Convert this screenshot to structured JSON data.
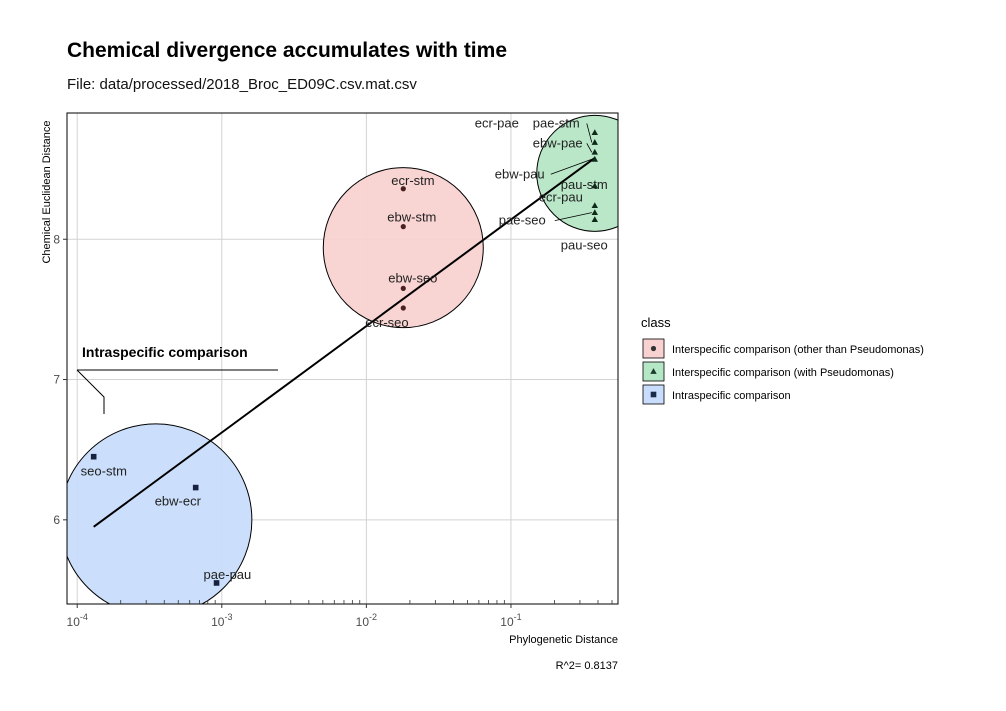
{
  "chart_data": {
    "type": "scatter",
    "title": "Chemical divergence accumulates with time",
    "subtitle": "File: data/processed/2018_Broc_ED09C.csv.mat.csv",
    "xlabel": "Phylogenetic Distance",
    "ylabel": "Chemical Euclidean Distance",
    "x_scale": "log10",
    "xlim": [
      8.5e-05,
      0.55
    ],
    "ylim": [
      5.4,
      8.9
    ],
    "x_ticks": [
      {
        "value": 0.0001,
        "base": "10",
        "exp": "-4"
      },
      {
        "value": 0.001,
        "base": "10",
        "exp": "-3"
      },
      {
        "value": 0.01,
        "base": "10",
        "exp": "-2"
      },
      {
        "value": 0.1,
        "base": "10",
        "exp": "-1"
      }
    ],
    "y_ticks": [
      "6",
      "7",
      "8"
    ],
    "grid": true,
    "legend": {
      "title": "class",
      "position": "right",
      "entries": [
        {
          "label": "Interspecific comparison (other than Pseudomonas)",
          "shape": "circle",
          "fill": "#f8d2d0",
          "color": "#333333"
        },
        {
          "label": "Interspecific comparison (with Pseudomonas)",
          "shape": "triangle",
          "fill": "#b5e6c5",
          "color": "#1c3a2a"
        },
        {
          "label": "Intraspecific comparison",
          "shape": "square",
          "fill": "#c8dcfb",
          "color": "#1a2a4a"
        }
      ]
    },
    "series": [
      {
        "name": "Interspecific comparison (other than Pseudomonas)",
        "shape": "circle",
        "color": "#4a2020",
        "points": [
          {
            "x": 0.018,
            "y": 8.36,
            "label": "ecr-stm"
          },
          {
            "x": 0.018,
            "y": 8.09,
            "label": "ebw-stm"
          },
          {
            "x": 0.018,
            "y": 7.65,
            "label": "ebw-seo"
          },
          {
            "x": 0.018,
            "y": 7.51,
            "label": "ecr-seo"
          }
        ]
      },
      {
        "name": "Interspecific comparison (with Pseudomonas)",
        "shape": "triangle",
        "color": "#0e2a18",
        "points": [
          {
            "x": 0.38,
            "y": 8.76,
            "label": "ecr-pae"
          },
          {
            "x": 0.38,
            "y": 8.69,
            "label": "pae-stm"
          },
          {
            "x": 0.38,
            "y": 8.62,
            "label": "ebw-pae"
          },
          {
            "x": 0.38,
            "y": 8.57,
            "label": "ebw-pau"
          },
          {
            "x": 0.38,
            "y": 8.38,
            "label": "pau-stm"
          },
          {
            "x": 0.38,
            "y": 8.24,
            "label": "ecr-pau"
          },
          {
            "x": 0.38,
            "y": 8.19,
            "label": "pae-seo"
          },
          {
            "x": 0.38,
            "y": 8.14,
            "label": "pau-seo"
          }
        ]
      },
      {
        "name": "Intraspecific comparison",
        "shape": "square",
        "color": "#15233f",
        "points": [
          {
            "x": 0.00013,
            "y": 6.45,
            "label": "seo-stm"
          },
          {
            "x": 0.00066,
            "y": 6.23,
            "label": "ebw-ecr"
          },
          {
            "x": 0.00092,
            "y": 5.55,
            "label": "pae-pau"
          }
        ]
      }
    ],
    "fit_line": {
      "x": [
        0.00013,
        0.38
      ],
      "y": [
        5.95,
        8.58
      ]
    },
    "annotation": "Intraspecific comparison",
    "caption": "R^2= 0.8137"
  }
}
